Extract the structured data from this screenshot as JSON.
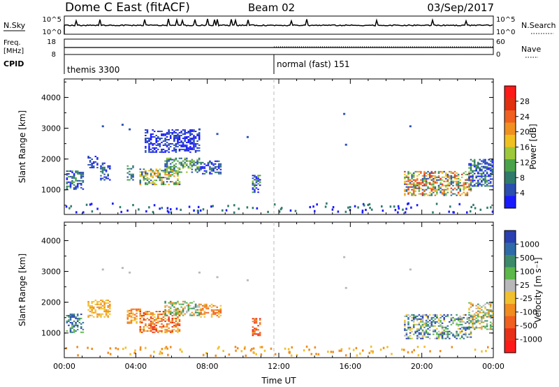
{
  "header": {
    "title": "Dome C East (fitACF)",
    "beam": "Beam 02",
    "date": "03/Sep/2017"
  },
  "top_panels": {
    "nsky_label": "N.Sky",
    "nsky_ticks": [
      "10^5",
      "10^0"
    ],
    "nsearch_label": "N.Search",
    "nsearch_ticks": [
      "10^5",
      "10^0"
    ],
    "freq_label_line1": "Freq.",
    "freq_label_line2": "[MHz]",
    "freq_ticks": [
      "18",
      "8"
    ],
    "nave_label": "Nave",
    "nave_ticks": [
      "60",
      "0"
    ],
    "cpid_label": "CPID",
    "cpid_segments": [
      "themis 3300",
      "normal (fast) 151"
    ]
  },
  "colors": {
    "power": [
      "#1a1aff",
      "#2a4fb0",
      "#2f7a6a",
      "#4aa34a",
      "#9cc83a",
      "#f0c020",
      "#f09020",
      "#f06020",
      "#e03010",
      "#ff1a1a"
    ],
    "velocity": [
      "#2a3fb0",
      "#2f6aa8",
      "#3c8a6a",
      "#5cb84a",
      "#b8b8b8",
      "#f0c030",
      "#f08c20",
      "#f06020",
      "#e83018",
      "#ff1a1a"
    ]
  },
  "chart_data": [
    {
      "type": "heatmap",
      "name": "power",
      "ylabel": "Slant Range [km]",
      "ylim": [
        200,
        4600
      ],
      "yticks": [
        "1000",
        "2000",
        "3000",
        "4000"
      ],
      "colorbar_label": "Power [dB]",
      "colorbar_ticks": [
        "4",
        "8",
        "12",
        "16",
        "20",
        "24",
        "28"
      ],
      "regions": [
        {
          "t": [
            0.1,
            1.1
          ],
          "r": [
            1000,
            1650
          ],
          "c": [
            0,
            1,
            2,
            3
          ]
        },
        {
          "t": [
            1.3,
            1.9
          ],
          "r": [
            1700,
            2100
          ],
          "c": [
            0,
            1
          ]
        },
        {
          "t": [
            2.0,
            2.6
          ],
          "r": [
            1300,
            1900
          ],
          "c": [
            0,
            1,
            2
          ]
        },
        {
          "t": [
            3.5,
            3.9
          ],
          "r": [
            1300,
            1800
          ],
          "c": [
            1,
            2,
            3
          ]
        },
        {
          "t": [
            4.2,
            6.5
          ],
          "r": [
            1150,
            1700
          ],
          "c": [
            1,
            2,
            3,
            4,
            5,
            6
          ]
        },
        {
          "t": [
            5.6,
            7.6
          ],
          "r": [
            1550,
            2050
          ],
          "c": [
            1,
            2,
            3,
            4
          ]
        },
        {
          "t": [
            7.6,
            8.8
          ],
          "r": [
            1500,
            1950
          ],
          "c": [
            0,
            1,
            2
          ]
        },
        {
          "t": [
            4.5,
            7.6
          ],
          "r": [
            2200,
            2950
          ],
          "c": [
            0,
            1
          ]
        },
        {
          "t": [
            10.5,
            11.0
          ],
          "r": [
            900,
            1500
          ],
          "c": [
            0,
            1,
            2,
            3,
            4
          ]
        },
        {
          "t": [
            19.0,
            22.8
          ],
          "r": [
            800,
            1600
          ],
          "c": [
            1,
            2,
            3,
            4,
            5,
            6,
            7,
            8
          ]
        },
        {
          "t": [
            22.6,
            24.0
          ],
          "r": [
            1100,
            2000
          ],
          "c": [
            0,
            1,
            2,
            3
          ]
        }
      ]
    },
    {
      "type": "heatmap",
      "name": "velocity",
      "ylabel": "Slant Range [km]",
      "ylim": [
        200,
        4600
      ],
      "yticks": [
        "1000",
        "2000",
        "3000",
        "4000"
      ],
      "xlabel": "Time UT",
      "xticks": [
        "00:00",
        "04:00",
        "08:00",
        "12:00",
        "16:00",
        "20:00",
        "00:00"
      ],
      "xlim": [
        0,
        24
      ],
      "colorbar_label": "Velocity [m s⁻¹]",
      "colorbar_ticks": [
        "1000",
        "500",
        "100",
        "25",
        "-25",
        "-100",
        "-500",
        "-1000"
      ],
      "regions": [
        {
          "t": [
            0.1,
            1.1
          ],
          "r": [
            1000,
            1650
          ],
          "c": [
            0,
            1,
            2,
            3
          ]
        },
        {
          "t": [
            1.3,
            2.6
          ],
          "r": [
            1500,
            2100
          ],
          "c": [
            5,
            6
          ]
        },
        {
          "t": [
            3.5,
            4.3
          ],
          "r": [
            1300,
            1800
          ],
          "c": [
            5,
            6,
            7
          ]
        },
        {
          "t": [
            4.2,
            6.5
          ],
          "r": [
            1000,
            1700
          ],
          "c": [
            5,
            6,
            7,
            8
          ]
        },
        {
          "t": [
            5.6,
            7.6
          ],
          "r": [
            1550,
            2050
          ],
          "c": [
            2,
            3,
            4,
            5,
            6
          ]
        },
        {
          "t": [
            7.6,
            8.8
          ],
          "r": [
            1500,
            1950
          ],
          "c": [
            5,
            6,
            7
          ]
        },
        {
          "t": [
            10.5,
            11.0
          ],
          "r": [
            900,
            1500
          ],
          "c": [
            6,
            7,
            8
          ]
        },
        {
          "t": [
            19.0,
            22.8
          ],
          "r": [
            800,
            1600
          ],
          "c": [
            0,
            1,
            2,
            3,
            4,
            5
          ]
        },
        {
          "t": [
            22.6,
            24.0
          ],
          "r": [
            1100,
            2000
          ],
          "c": [
            2,
            3,
            4,
            5,
            6
          ]
        }
      ]
    }
  ]
}
